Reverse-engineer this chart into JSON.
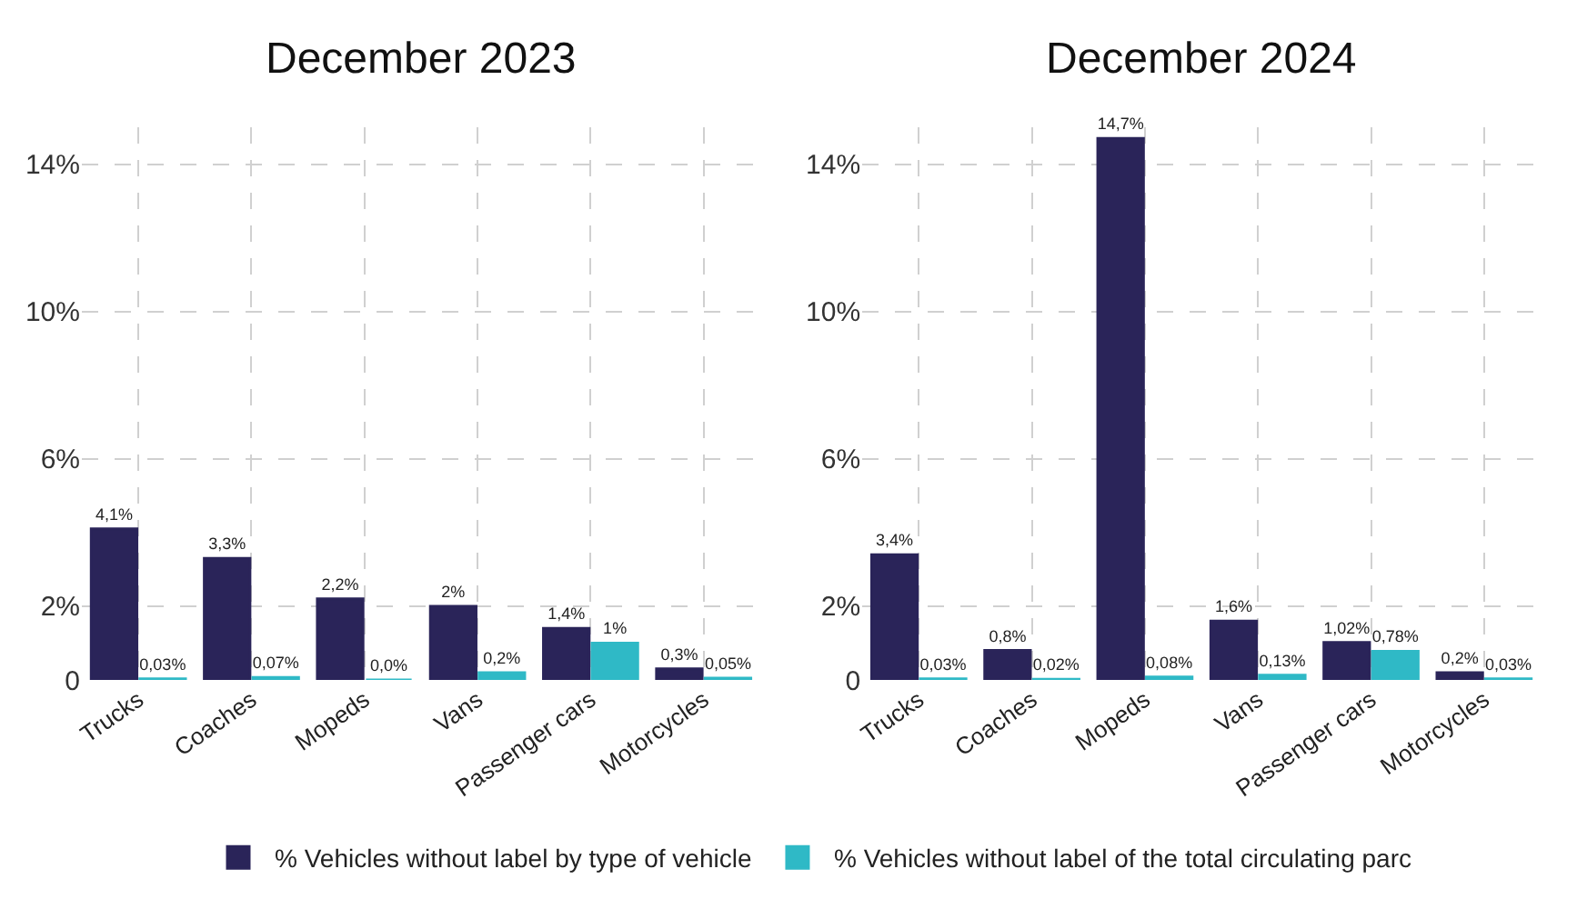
{
  "chart_data": [
    {
      "type": "bar",
      "title": "December 2023",
      "categories": [
        "Trucks",
        "Coaches",
        "Mopeds",
        "Vans",
        "Passenger cars",
        "Motorcycles"
      ],
      "series": [
        {
          "name": "% Vehicles without label by type of vehicle",
          "color": "#2a2459",
          "values": [
            4.1,
            3.3,
            2.2,
            2,
            1.4,
            0.3
          ],
          "value_labels": [
            "4,1%",
            "3,3%",
            "2,2%",
            "2%",
            "1,4%",
            "0,3%"
          ]
        },
        {
          "name": "% Vehicles without label of the total circulating parc",
          "color": "#2fb9c6",
          "values": [
            0.03,
            0.07,
            0.0,
            0.2,
            1,
            0.05
          ],
          "value_labels": [
            "0,03%",
            "0,07%",
            "0,0%",
            "0,2%",
            "1%",
            "0,05%"
          ]
        }
      ],
      "ylim": [
        0,
        15
      ],
      "yticks": [
        {
          "value": 0,
          "label": "0"
        },
        {
          "value": 2,
          "label": "2%"
        },
        {
          "value": 6,
          "label": "6%"
        },
        {
          "value": 10,
          "label": "10%"
        },
        {
          "value": 14,
          "label": "14%"
        }
      ],
      "grid": true,
      "legend": "bottom"
    },
    {
      "type": "bar",
      "title": "December 2024",
      "categories": [
        "Trucks",
        "Coaches",
        "Mopeds",
        "Vans",
        "Passenger cars",
        "Motorcycles"
      ],
      "series": [
        {
          "name": "% Vehicles without label by type of vehicle",
          "color": "#2a2459",
          "values": [
            3.4,
            0.8,
            14.7,
            1.6,
            1.02,
            0.2
          ],
          "value_labels": [
            "3,4%",
            "0,8%",
            "14,7%",
            "1,6%",
            "1,02%",
            "0,2%"
          ]
        },
        {
          "name": "% Vehicles without label of the total circulating parc",
          "color": "#2fb9c6",
          "values": [
            0.03,
            0.02,
            0.08,
            0.13,
            0.78,
            0.03
          ],
          "value_labels": [
            "0,03%",
            "0,02%",
            "0,08%",
            "0,13%",
            "0,78%",
            "0,03%"
          ]
        }
      ],
      "ylim": [
        0,
        15
      ],
      "yticks": [
        {
          "value": 0,
          "label": "0"
        },
        {
          "value": 2,
          "label": "2%"
        },
        {
          "value": 6,
          "label": "6%"
        },
        {
          "value": 10,
          "label": "10%"
        },
        {
          "value": 14,
          "label": "14%"
        }
      ],
      "grid": true,
      "legend": "bottom"
    }
  ]
}
